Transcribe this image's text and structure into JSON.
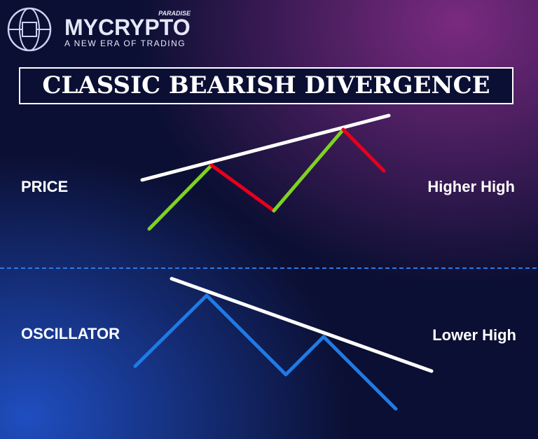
{
  "logo": {
    "brand": "MYCRYPTO",
    "superscript": "PARADISE",
    "tagline": "A NEW ERA OF TRADING"
  },
  "title": "CLASSIC BEARISH DIVERGENCE",
  "price": {
    "label": "PRICE",
    "note": "Higher High"
  },
  "oscillator": {
    "label": "OSCILLATOR",
    "note": "Lower High"
  }
}
